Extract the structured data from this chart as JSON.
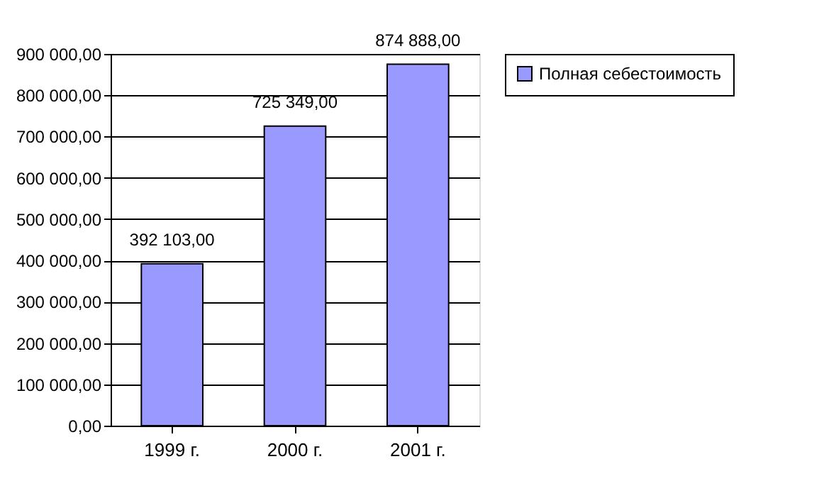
{
  "chart_data": {
    "type": "bar",
    "categories": [
      "1999 г.",
      "2000 г.",
      "2001 г."
    ],
    "series": [
      {
        "name": "Полная себестоимость",
        "color": "#9999ff",
        "values": [
          392103,
          725349,
          874888
        ],
        "value_labels": [
          "392 103,00",
          "725 349,00",
          "874 888,00"
        ]
      }
    ],
    "ylim": [
      0,
      900000
    ],
    "yticks": [
      {
        "value": 0,
        "label": "0,00"
      },
      {
        "value": 100000,
        "label": "100 000,00"
      },
      {
        "value": 200000,
        "label": "200 000,00"
      },
      {
        "value": 300000,
        "label": "300 000,00"
      },
      {
        "value": 400000,
        "label": "400 000,00"
      },
      {
        "value": 500000,
        "label": "500 000,00"
      },
      {
        "value": 600000,
        "label": "600 000,00"
      },
      {
        "value": 700000,
        "label": "700 000,00"
      },
      {
        "value": 800000,
        "label": "800 000,00"
      },
      {
        "value": 900000,
        "label": "900 000,00"
      }
    ],
    "grid": "y",
    "legend": "right"
  }
}
